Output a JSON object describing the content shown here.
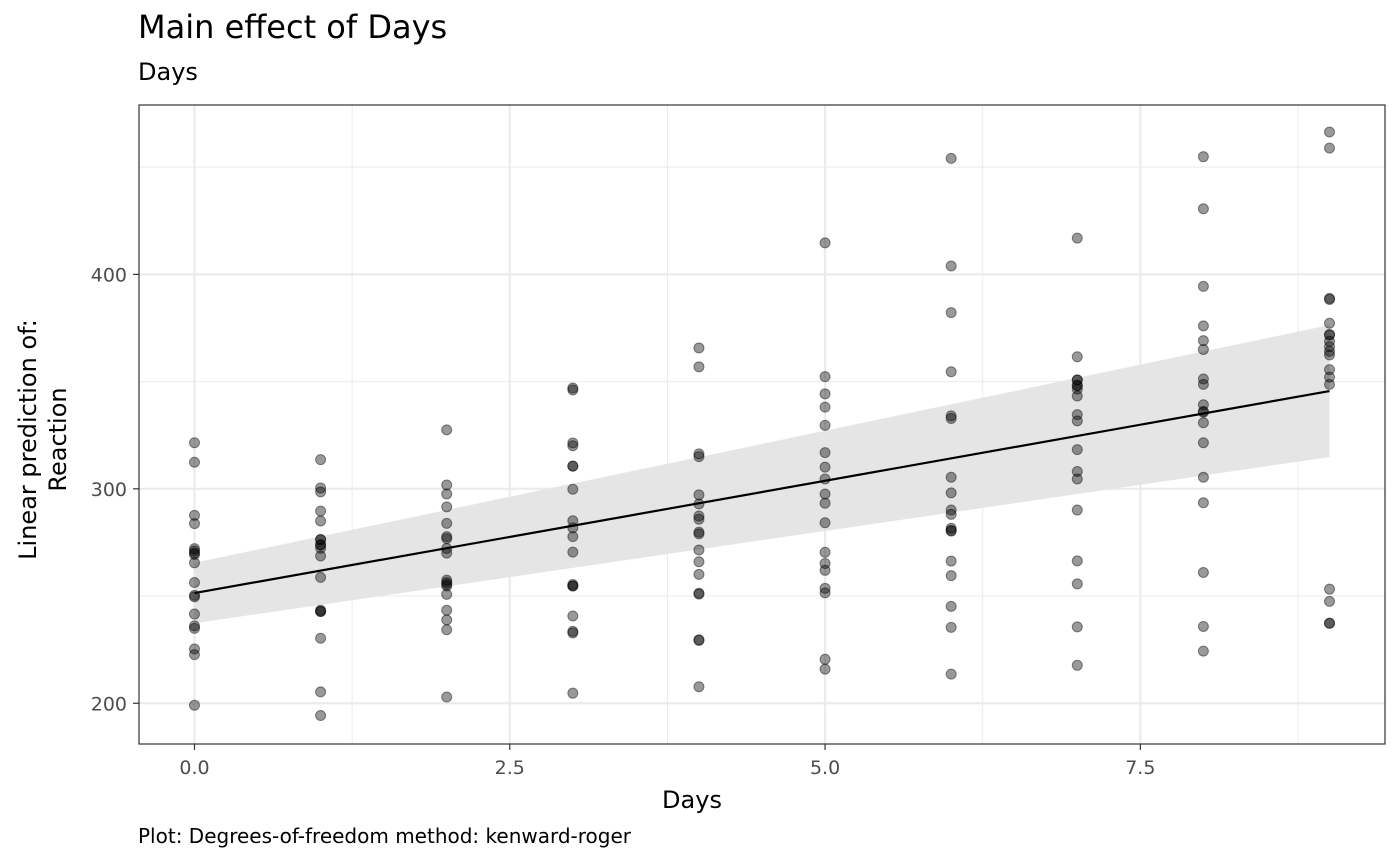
{
  "chart_data": {
    "type": "scatter",
    "title": "Main effect of Days",
    "subtitle": "Days",
    "xlabel": "Days",
    "ylabel": [
      "Linear prediction of:",
      "Reaction"
    ],
    "caption": "Plot: Degrees-of-freedom method: kenward-roger",
    "xlim": [
      -0.44,
      9.44
    ],
    "ylim": [
      181,
      479
    ],
    "x_ticks": [
      0.0,
      2.5,
      5.0,
      7.5
    ],
    "x_tick_labels": [
      "0.0",
      "2.5",
      "5.0",
      "7.5"
    ],
    "y_ticks": [
      200,
      300,
      400
    ],
    "y_tick_labels": [
      "200",
      "300",
      "400"
    ],
    "grid": true,
    "points": [
      {
        "day": 0,
        "values": [
          249.6,
          222.7,
          199.1,
          321.5,
          287.6,
          234.9,
          283.8,
          265.5,
          241.6,
          312.4,
          236.1,
          256.3,
          270.0,
          271.0,
          272.1,
          225.3,
          250.3,
          269.4
        ]
      },
      {
        "day": 1,
        "values": [
          258.7,
          205.3,
          194.3,
          300.4,
          285.0,
          242.8,
          289.6,
          276.2,
          273.9,
          313.6,
          230.3,
          243.4,
          268.7,
          272.3,
          298.6,
          276.4,
          242.8,
          273.8
        ]
      },
      {
        "day": 2,
        "values": [
          250.8,
          202.9,
          234.3,
          283.9,
          301.8,
          272.2,
          276.8,
          243.4,
          254.7,
          291.6,
          238.9,
          256.3,
          257.4,
          277.7,
          297.6,
          270.0,
          255.5,
          327.5
        ]
      },
      {
        "day": 3,
        "values": [
          321.4,
          204.7,
          232.8,
          285.1,
          320.1,
          233.5,
          299.8,
          254.7,
          270.5,
          346.1,
          240.7,
          255.4,
          277.7,
          310.6,
          310.6,
          281.8,
          254.7,
          347.0
        ]
      },
      {
        "day": 4,
        "values": [
          356.9,
          207.7,
          229.3,
          285.8,
          316.3,
          229.6,
          297.2,
          279.0,
          279.8,
          365.7,
          251.3,
          250.9,
          271.5,
          266.0,
          287.3,
          292.9,
          260.1,
          315.0
        ]
      },
      {
        "day": 5,
        "values": [
          414.7,
          215.9,
          220.5,
          297.6,
          293.3,
          251.5,
          338.1,
          284.2,
          329.6,
          352.3,
          262.0,
          253.6,
          304.6,
          316.9,
          310.1,
          270.4,
          265.2,
          344.3
        ]
      },
      {
        "day": 6,
        "values": [
          382.2,
          213.6,
          235.4,
          280.3,
          290.1,
          259.5,
          332.8,
          281.6,
          305.4,
          403.9,
          245.2,
          266.3,
          354.6,
          334.0,
          298.1,
          288.1,
          280.6,
          454.1
        ]
      },
      {
        "day": 7,
        "values": [
          290.1,
          217.7,
          255.7,
          318.3,
          334.6,
          235.6,
          361.6,
          304.6,
          348.1,
          416.9,
          266.4,
          308.1,
          343.3,
          331.7,
          346.5,
          348.3,
          350.7,
          350.8
        ]
      },
      {
        "day": 8,
        "values": [
          430.6,
          224.3,
          261.0,
          305.4,
          336.1,
          235.8,
          339.2,
          330.8,
          365.0,
          394.4,
          321.5,
          351.2,
          335.7,
          376.0,
          348.7,
          369.1,
          293.5,
          454.9
        ]
      },
      {
        "day": 9,
        "values": [
          466.4,
          237.3,
          247.5,
          388.8,
          372.0,
          237.3,
          388.3,
          355.6,
          364.1,
          458.9,
          253.2,
          368.8,
          348.7,
          377.2,
          371.7,
          366.3,
          362.4,
          352.1
        ]
      }
    ],
    "fit_line": {
      "x": [
        0,
        9
      ],
      "y": [
        251.4,
        345.6
      ]
    },
    "ci_band": {
      "x": [
        0,
        9
      ],
      "lower": [
        237.3,
        314.8
      ],
      "upper": [
        265.5,
        376.4
      ]
    },
    "colors": {
      "points": "#000000",
      "band": "#e5e5e5",
      "line": "#000000",
      "grid": "#ebebeb"
    }
  }
}
